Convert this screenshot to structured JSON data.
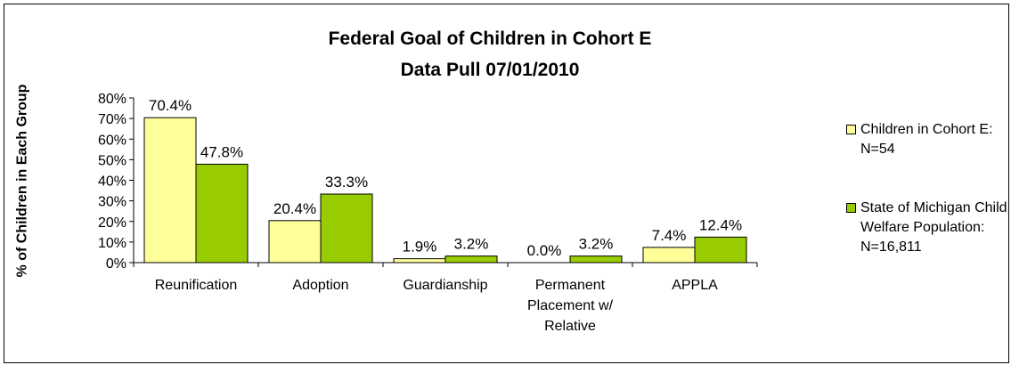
{
  "chart_data": {
    "type": "bar",
    "title": "Federal Goal of Children in Cohort E",
    "subtitle": "Data Pull 07/01/2010",
    "ylabel": "% of Children in Each Group",
    "xlabel": "",
    "ylim": [
      0,
      80
    ],
    "yticks": [
      "0%",
      "10%",
      "20%",
      "30%",
      "40%",
      "50%",
      "60%",
      "70%",
      "80%"
    ],
    "grid": false,
    "legend_position": "right",
    "categories": [
      "Reunification",
      "Adoption",
      "Guardianship",
      "Permanent Placement w/ Relative",
      "APPLA"
    ],
    "series": [
      {
        "name": "Children in Cohort E: N=54",
        "color": "#ffff99",
        "values": [
          70.4,
          20.4,
          1.9,
          0.0,
          7.4
        ],
        "labels": [
          "70.4%",
          "20.4%",
          "1.9%",
          "0.0%",
          "7.4%"
        ]
      },
      {
        "name": "State of Michigan Child Welfare Population: N=16,811",
        "color": "#99cc00",
        "values": [
          47.8,
          33.3,
          3.2,
          3.2,
          12.4
        ],
        "labels": [
          "47.8%",
          "33.3%",
          "3.2%",
          "3.2%",
          "12.4%"
        ]
      }
    ]
  }
}
